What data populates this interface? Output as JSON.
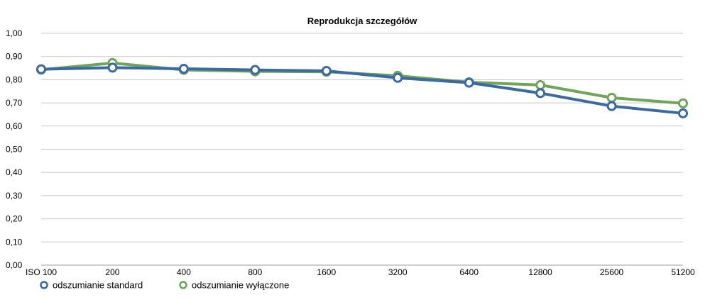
{
  "chart_data": {
    "type": "line",
    "title": "Reprodukcja szczegółów",
    "xlabel": "",
    "ylabel": "",
    "categories": [
      "ISO 100",
      "200",
      "400",
      "800",
      "1600",
      "3200",
      "6400",
      "12800",
      "25600",
      "51200"
    ],
    "ylim": [
      0,
      1
    ],
    "yticks": [
      "0,00",
      "0,10",
      "0,20",
      "0,30",
      "0,40",
      "0,50",
      "0,60",
      "0,70",
      "0,80",
      "0,90",
      "1,00"
    ],
    "grid": true,
    "legend_position": "bottom-left",
    "series": [
      {
        "name": "odszumianie standard",
        "color": "#3b6aa0",
        "values": [
          0.845,
          0.852,
          0.847,
          0.842,
          0.838,
          0.808,
          0.787,
          0.742,
          0.686,
          0.655
        ]
      },
      {
        "name": "odszumianie wyłączone",
        "color": "#6fa55a",
        "values": [
          0.843,
          0.872,
          0.842,
          0.836,
          0.834,
          0.817,
          0.789,
          0.777,
          0.722,
          0.698
        ]
      }
    ]
  }
}
